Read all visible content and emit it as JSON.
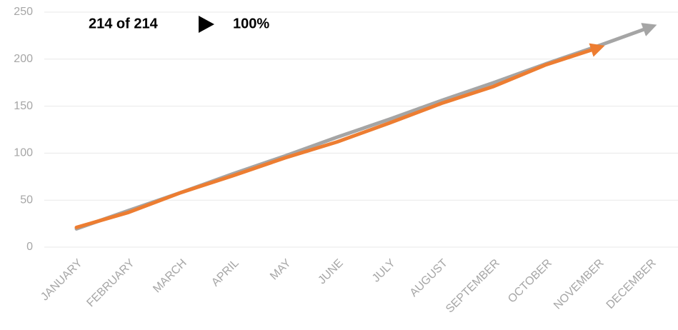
{
  "chart_data": {
    "type": "line",
    "annotations": [
      "214 of 214",
      "100%"
    ],
    "categories": [
      "JANUARY",
      "FEBRUARY",
      "MARCH",
      "APRIL",
      "MAY",
      "JUNE",
      "JULY",
      "AUGUST",
      "SEPTEMBER",
      "OCTOBER",
      "NOVEMBER",
      "DECEMBER"
    ],
    "series": [
      {
        "color": "#a5a5a5",
        "values": [
          19.5,
          39,
          58,
          78,
          97,
          117,
          136,
          156,
          175,
          195,
          214,
          234
        ]
      },
      {
        "color": "#ed7d31",
        "values": [
          21,
          37,
          58,
          76,
          95,
          112,
          132,
          153,
          171,
          194,
          212,
          null
        ]
      }
    ],
    "ylim": [
      0,
      250
    ],
    "yticks": [
      0,
      50,
      100,
      150,
      200,
      250
    ],
    "grid": true
  }
}
